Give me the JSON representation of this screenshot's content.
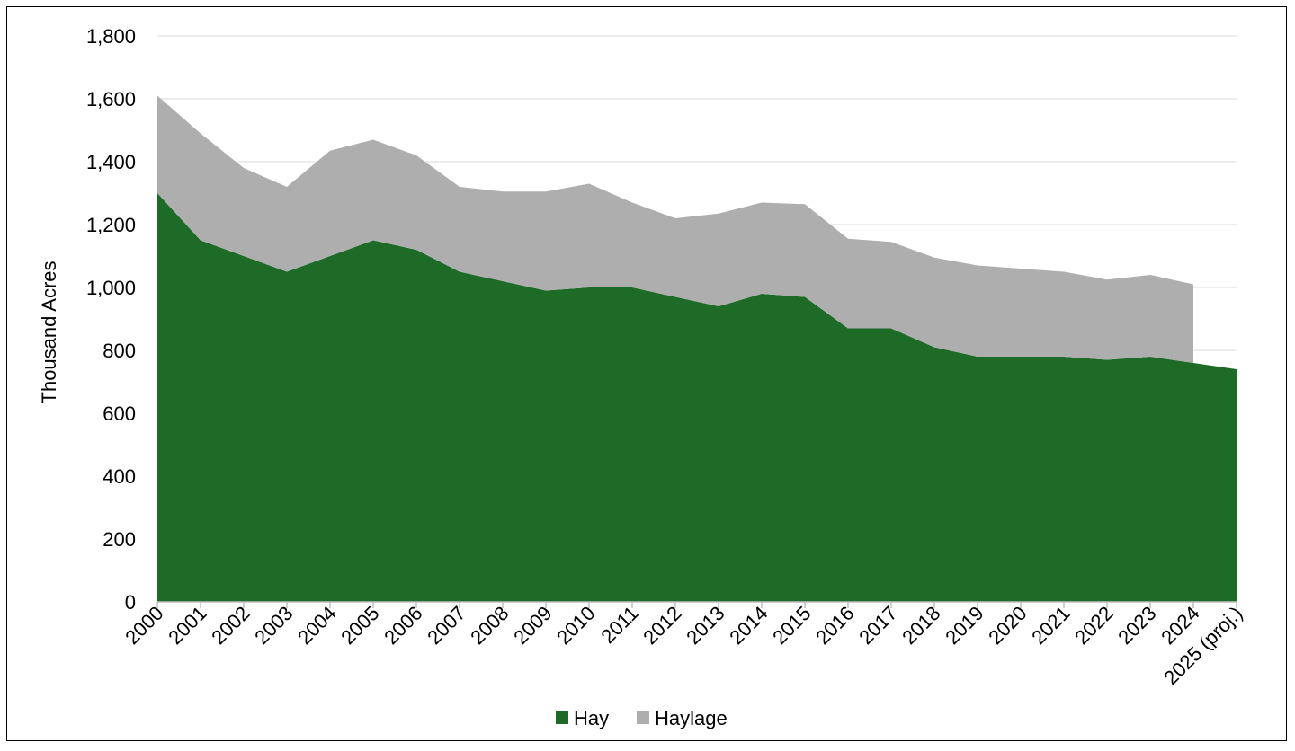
{
  "chart_data": {
    "type": "area",
    "stacked": true,
    "title": "",
    "xlabel": "",
    "ylabel": "Thousand Acres",
    "ylim": [
      0,
      1800
    ],
    "yticks": [
      0,
      200,
      400,
      600,
      800,
      1000,
      1200,
      1400,
      1600,
      1800
    ],
    "ytick_labels": [
      "0",
      "200",
      "400",
      "600",
      "800",
      "1,000",
      "1,200",
      "1,400",
      "1,600",
      "1,800"
    ],
    "grid": true,
    "legend_position": "bottom",
    "categories": [
      "2000",
      "2001",
      "2002",
      "2003",
      "2004",
      "2005",
      "2006",
      "2007",
      "2008",
      "2009",
      "2010",
      "2011",
      "2012",
      "2013",
      "2014",
      "2015",
      "2016",
      "2017",
      "2018",
      "2019",
      "2020",
      "2021",
      "2022",
      "2023",
      "2024",
      "2025 (proj.)"
    ],
    "series": [
      {
        "name": "Hay",
        "color": "#1e6b28",
        "values": [
          1300,
          1150,
          1100,
          1050,
          1100,
          1150,
          1120,
          1050,
          1020,
          990,
          1000,
          1000,
          970,
          940,
          980,
          970,
          870,
          870,
          810,
          780,
          780,
          780,
          770,
          780,
          760,
          740
        ]
      },
      {
        "name": "Haylage",
        "color": "#aeaeae",
        "values": [
          310,
          340,
          280,
          270,
          335,
          320,
          300,
          270,
          285,
          315,
          330,
          270,
          250,
          295,
          290,
          295,
          285,
          275,
          285,
          290,
          280,
          270,
          255,
          260,
          250,
          null
        ]
      }
    ]
  }
}
